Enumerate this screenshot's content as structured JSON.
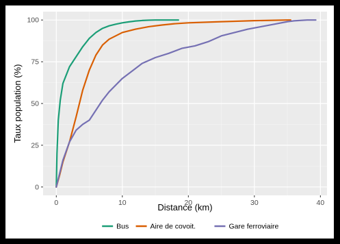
{
  "chart_data": {
    "type": "line",
    "xlabel": "Distance (km)",
    "ylabel": "Taux population (%)",
    "xlim": [
      -2,
      41
    ],
    "ylim": [
      -5,
      105
    ],
    "x_ticks": [
      0,
      10,
      20,
      30,
      40
    ],
    "y_ticks": [
      0,
      25,
      50,
      75,
      100
    ],
    "grid": true,
    "legend_position": "bottom",
    "series": [
      {
        "name": "Bus",
        "color": "#1b9e77",
        "points": [
          [
            0,
            0
          ],
          [
            0.1,
            20
          ],
          [
            0.3,
            40
          ],
          [
            0.6,
            52
          ],
          [
            1,
            62
          ],
          [
            1.5,
            67
          ],
          [
            2,
            72
          ],
          [
            3,
            78
          ],
          [
            4,
            84
          ],
          [
            5,
            89
          ],
          [
            6,
            92.5
          ],
          [
            7,
            95
          ],
          [
            8,
            96.5
          ],
          [
            9,
            97.5
          ],
          [
            10,
            98.3
          ],
          [
            11,
            98.9
          ],
          [
            12,
            99.4
          ],
          [
            13,
            99.7
          ],
          [
            14,
            99.9
          ],
          [
            15,
            100
          ],
          [
            18.5,
            100
          ]
        ]
      },
      {
        "name": "Aire de covoit.",
        "color": "#d95f02",
        "points": [
          [
            0,
            0
          ],
          [
            0.5,
            7
          ],
          [
            1,
            15
          ],
          [
            2,
            27
          ],
          [
            3,
            42
          ],
          [
            4,
            58
          ],
          [
            5,
            70
          ],
          [
            6,
            79
          ],
          [
            7,
            85
          ],
          [
            8,
            88.5
          ],
          [
            9,
            90.5
          ],
          [
            10,
            92.5
          ],
          [
            12,
            94.5
          ],
          [
            14,
            96
          ],
          [
            16,
            97
          ],
          [
            18,
            97.8
          ],
          [
            20,
            98.3
          ],
          [
            25,
            99
          ],
          [
            30,
            99.6
          ],
          [
            35,
            100
          ],
          [
            35.5,
            100
          ]
        ]
      },
      {
        "name": "Gare ferroviaire",
        "color": "#7570b3",
        "points": [
          [
            0,
            0
          ],
          [
            0.5,
            8
          ],
          [
            1,
            16
          ],
          [
            2,
            27
          ],
          [
            3,
            34
          ],
          [
            4,
            37.5
          ],
          [
            5,
            40
          ],
          [
            6,
            46
          ],
          [
            7,
            52
          ],
          [
            8,
            57
          ],
          [
            10,
            65
          ],
          [
            12,
            71
          ],
          [
            13,
            74
          ],
          [
            15,
            77.5
          ],
          [
            17,
            80
          ],
          [
            19,
            83
          ],
          [
            21,
            84.5
          ],
          [
            23,
            87
          ],
          [
            25,
            90.5
          ],
          [
            27,
            92.5
          ],
          [
            29,
            94.5
          ],
          [
            31,
            96
          ],
          [
            33,
            97.5
          ],
          [
            35,
            99
          ],
          [
            36,
            99.5
          ],
          [
            38,
            100
          ],
          [
            39.3,
            100
          ]
        ]
      }
    ]
  }
}
